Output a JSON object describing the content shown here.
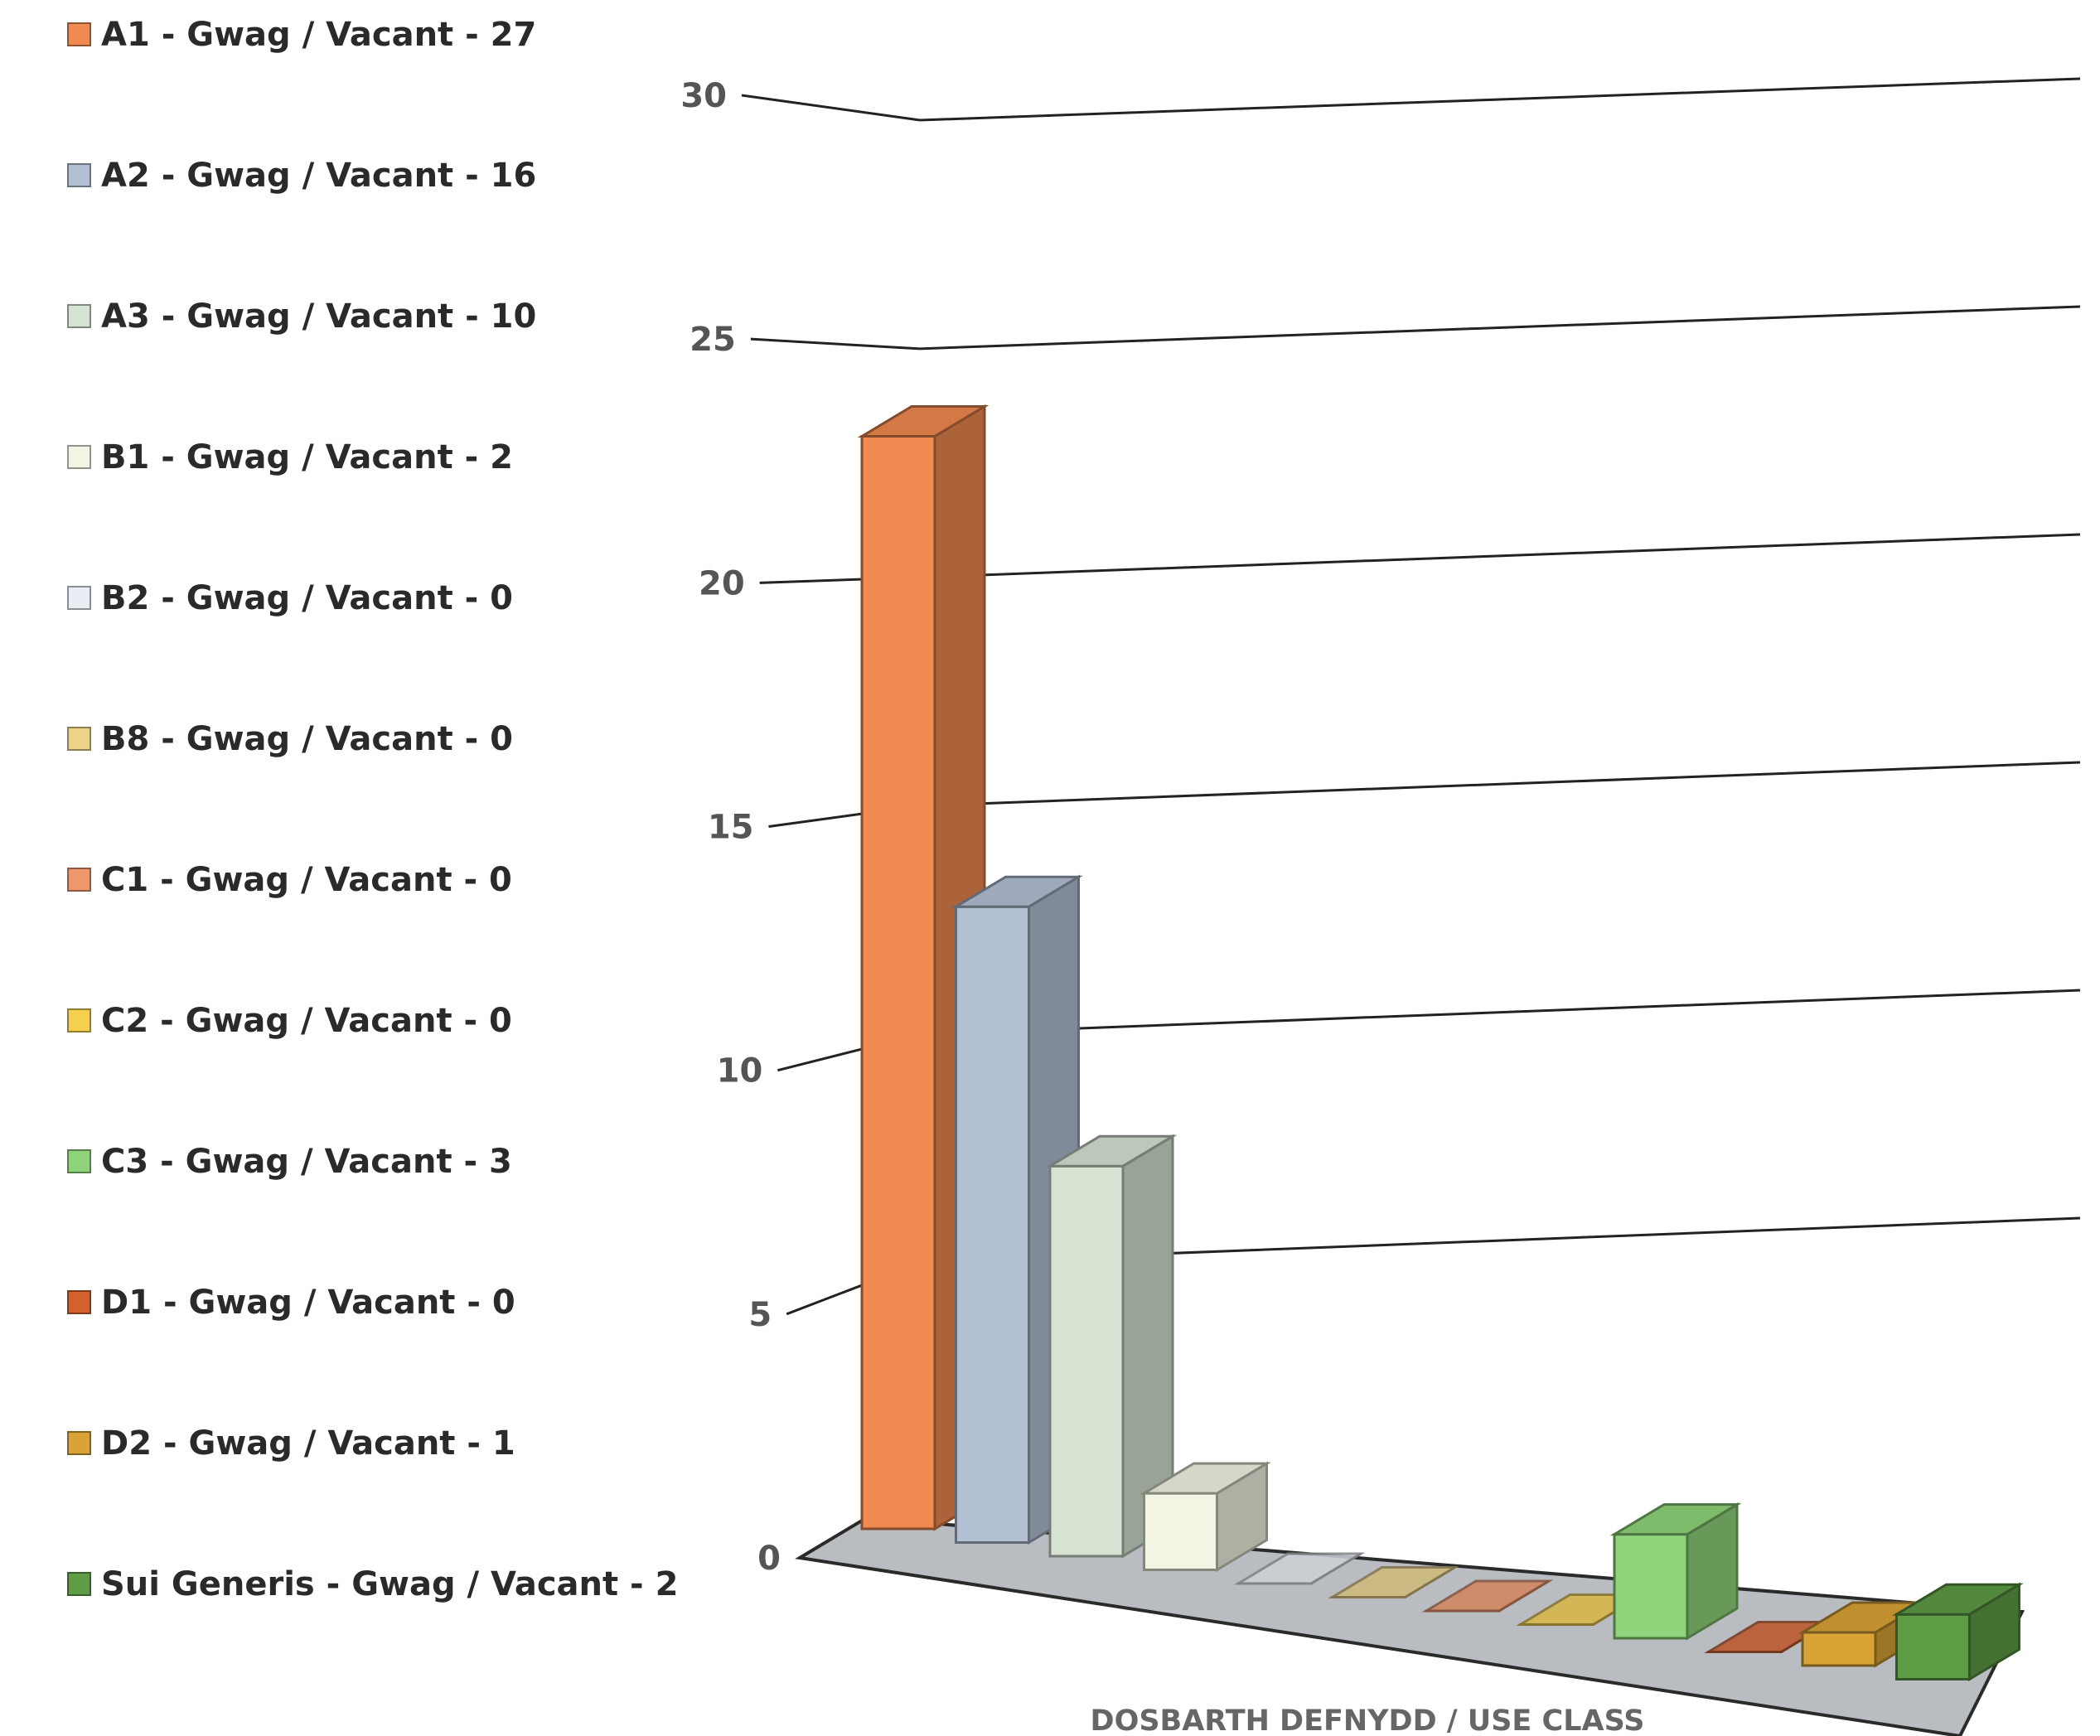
{
  "chart_data": {
    "type": "bar",
    "xlabel": "DOSBARTH DEFNYDD / USE CLASS",
    "ylabel": "",
    "ylim": [
      0,
      30
    ],
    "yticks": [
      0,
      5,
      10,
      15,
      20,
      25,
      30
    ],
    "grid": true,
    "legend_position": "left",
    "categories": [
      "A1",
      "A2",
      "A3",
      "B1",
      "B2",
      "B8",
      "C1",
      "C2",
      "C3",
      "D1",
      "D2",
      "Sui Generis"
    ],
    "series": [
      {
        "name": "A1 - Gwag / Vacant - 27",
        "value": 27,
        "color": "#f08a50"
      },
      {
        "name": "A2 - Gwag / Vacant - 16",
        "value": 16,
        "color": "#b3c0d4"
      },
      {
        "name": "A3 - Gwag / Vacant - 10",
        "value": 10,
        "color": "#d6e3d3"
      },
      {
        "name": "B1 - Gwag / Vacant - 2",
        "value": 2,
        "color": "#f2f5e4"
      },
      {
        "name": "B2 - Gwag / Vacant - 0",
        "value": 0,
        "color": "#e9eef4"
      },
      {
        "name": "B8 - Gwag / Vacant - 0",
        "value": 0,
        "color": "#ecd38a"
      },
      {
        "name": "C1 - Gwag / Vacant - 0",
        "value": 0,
        "color": "#f0966b"
      },
      {
        "name": "C2 - Gwag / Vacant - 0",
        "value": 0,
        "color": "#f5cf4e"
      },
      {
        "name": "C3 - Gwag / Vacant - 3",
        "value": 3,
        "color": "#8fd47a"
      },
      {
        "name": "D1 - Gwag / Vacant - 0",
        "value": 0,
        "color": "#d4602e"
      },
      {
        "name": "D2 - Gwag / Vacant - 1",
        "value": 1,
        "color": "#d9a336"
      },
      {
        "name": "Sui Generis - Gwag / Vacant - 2",
        "value": 2,
        "color": "#5e9c45"
      }
    ]
  }
}
